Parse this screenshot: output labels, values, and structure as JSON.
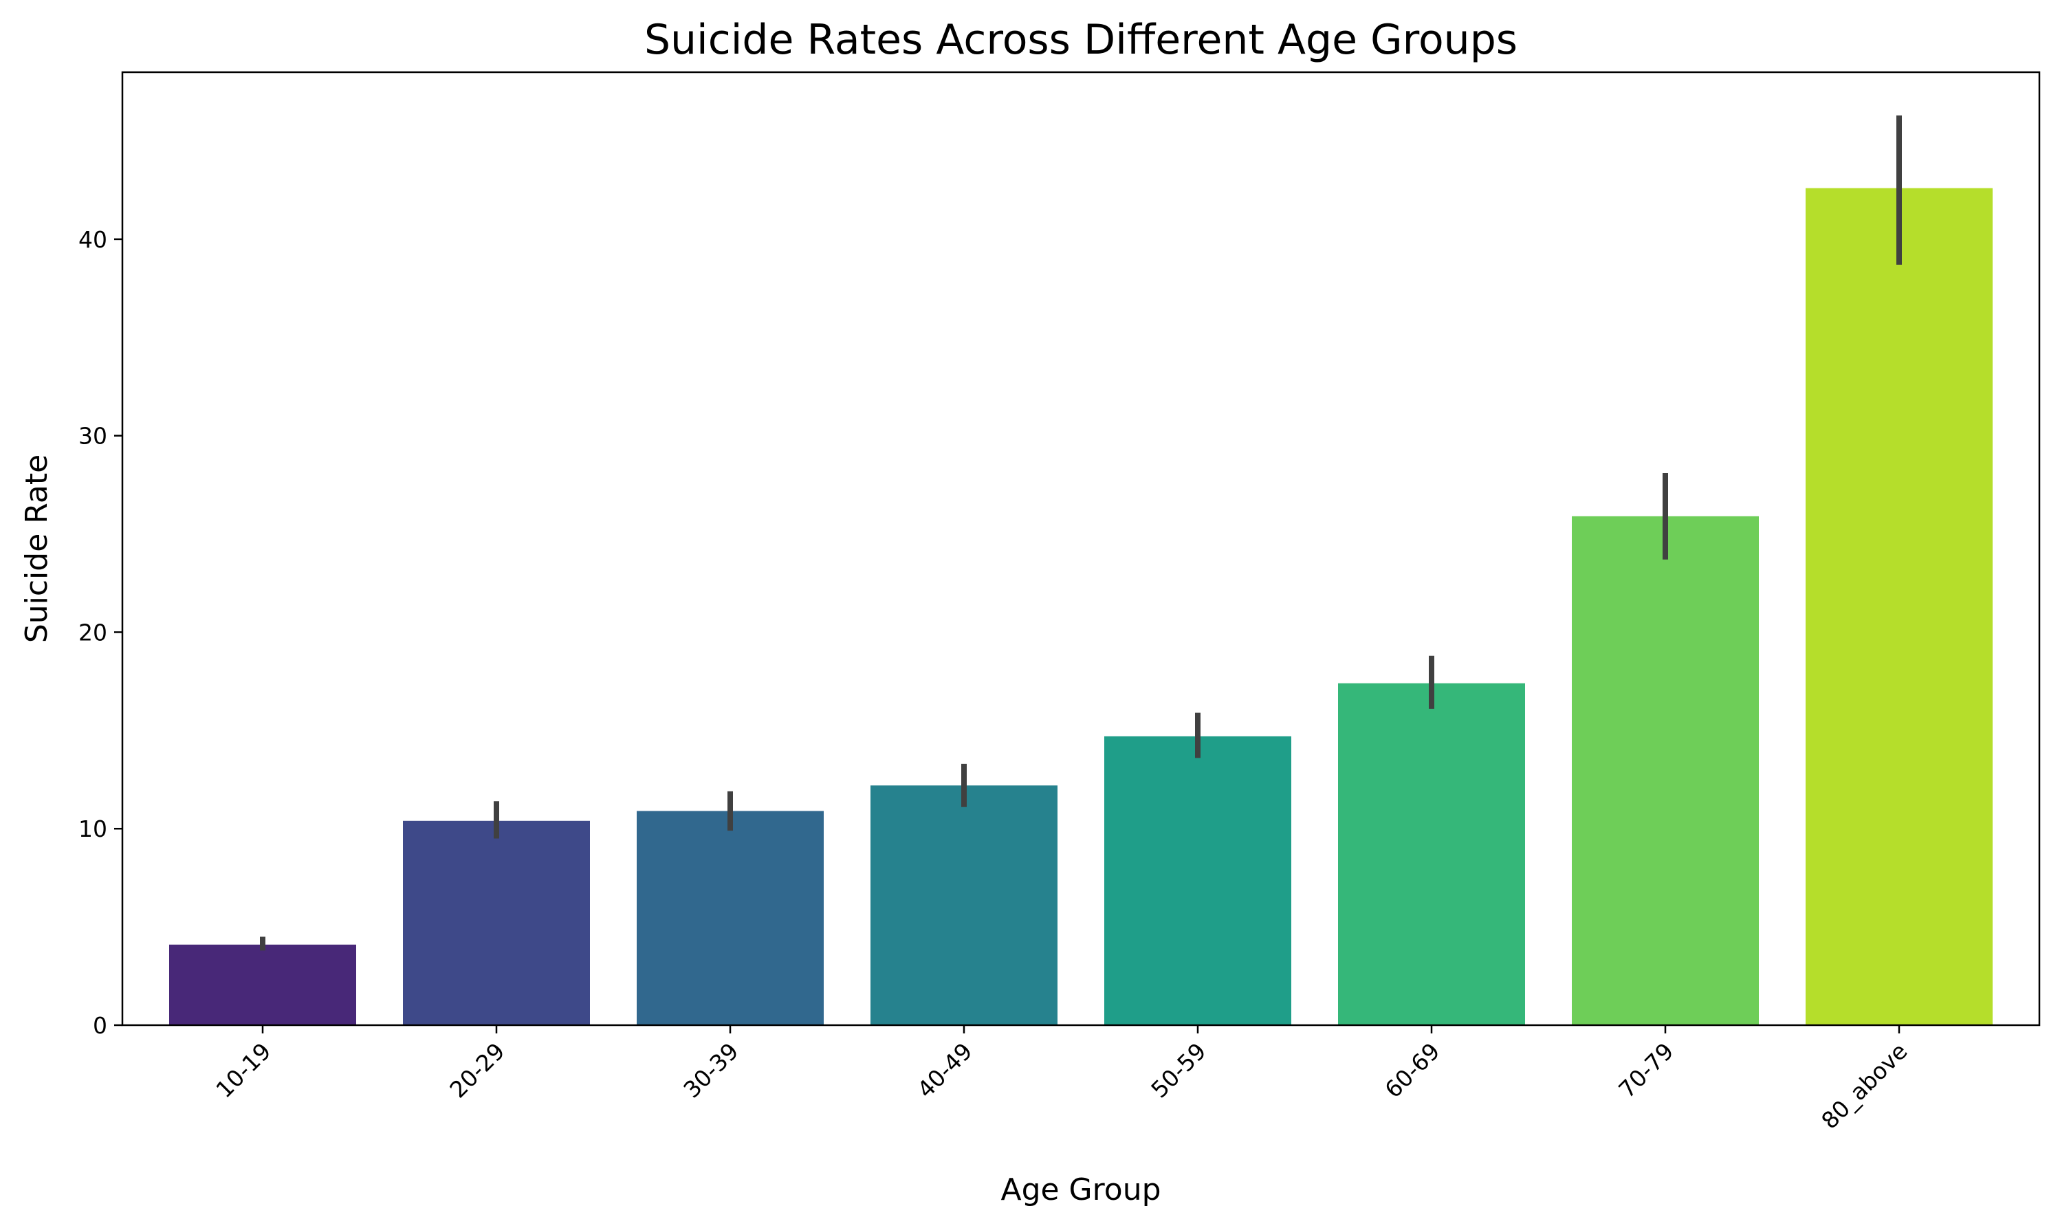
{
  "chart_data": {
    "type": "bar",
    "title": "Suicide Rates Across Different Age Groups",
    "xlabel": "Age Group",
    "ylabel": "Suicide Rate",
    "categories": [
      "10-19",
      "20-29",
      "30-39",
      "40-49",
      "50-59",
      "60-69",
      "70-79",
      "80_above"
    ],
    "values": [
      4.1,
      10.4,
      10.9,
      12.2,
      14.7,
      17.4,
      25.9,
      42.6
    ],
    "error_low": [
      3.8,
      9.5,
      9.9,
      11.1,
      13.6,
      16.1,
      23.7,
      38.7
    ],
    "error_high": [
      4.5,
      11.4,
      11.9,
      13.3,
      15.9,
      18.8,
      28.1,
      46.3
    ],
    "colors": [
      "#482878",
      "#3e4989",
      "#31688e",
      "#26828e",
      "#1f9e89",
      "#35b779",
      "#6ece58",
      "#b5de2b"
    ],
    "error_color": "#404040",
    "ylim": [
      0,
      48.5
    ],
    "yticks": [
      0,
      10,
      20,
      30,
      40
    ],
    "grid": false,
    "legend": false
  }
}
